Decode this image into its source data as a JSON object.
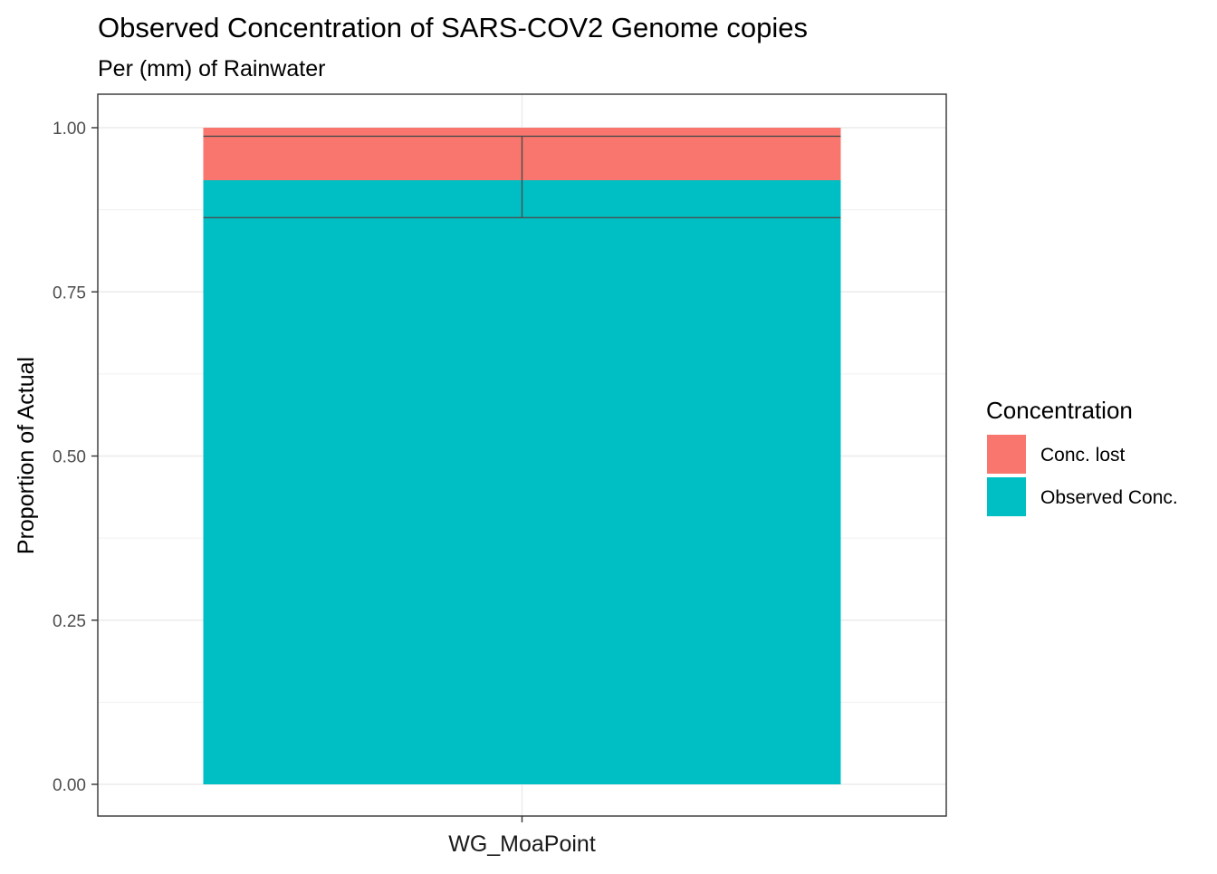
{
  "chart_data": {
    "type": "bar",
    "stacked": true,
    "title": "Observed Concentration of SARS-COV2 Genome copies",
    "subtitle": "Per (mm) of Rainwater",
    "xlabel": "",
    "ylabel": "Proportion of Actual",
    "categories": [
      "WG_MoaPoint"
    ],
    "ylim": [
      0,
      1.05
    ],
    "yticks": [
      0.0,
      0.25,
      0.5,
      0.75,
      1.0
    ],
    "ytick_labels": [
      "0.00",
      "0.25",
      "0.50",
      "0.75",
      "1.00"
    ],
    "grid": true,
    "legend": {
      "title": "Concentration",
      "placement": "right"
    },
    "series": [
      {
        "name": "Conc. lost",
        "values": [
          0.08
        ],
        "color": "#F8766D"
      },
      {
        "name": "Observed Conc.",
        "values": [
          0.92
        ],
        "color": "#00BFC4"
      }
    ],
    "error_bars": [
      {
        "category": "WG_MoaPoint",
        "y": 0.92,
        "ymin": 0.863,
        "ymax": 0.987
      }
    ]
  }
}
